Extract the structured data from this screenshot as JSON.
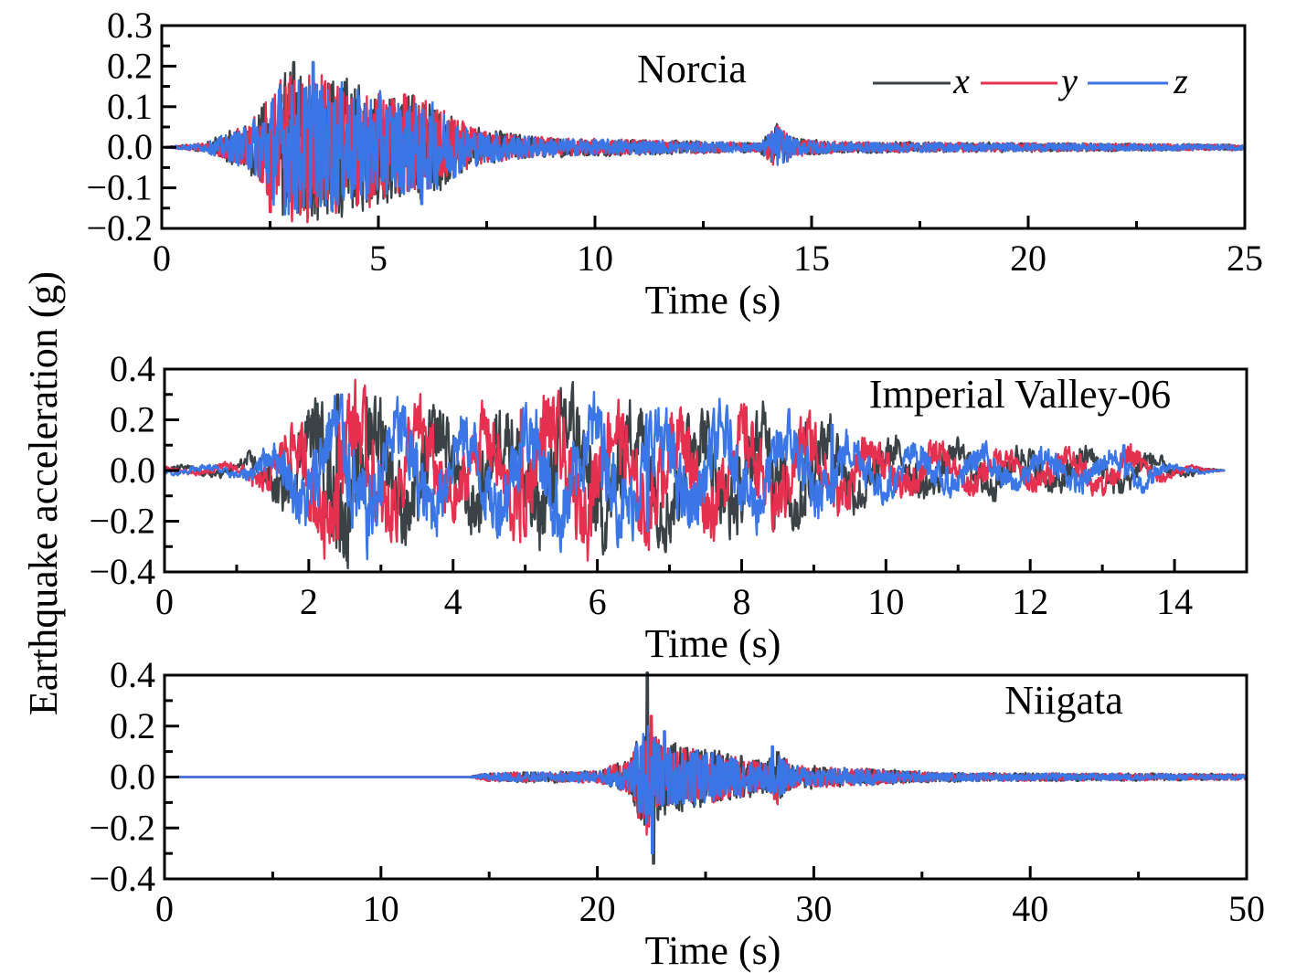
{
  "chart_data": {
    "type": "line",
    "ylabel": "Earthquake acceleration (g)",
    "legend": {
      "placement": "top-right",
      "entries": [
        "x",
        "y",
        "z"
      ]
    },
    "colors": {
      "x": "#3b4246",
      "y": "#e5304f",
      "z": "#3a76e6"
    },
    "panels": [
      {
        "title": "Norcia",
        "xlabel": "Time (s)",
        "xlim": [
          0,
          25
        ],
        "ylim": [
          -0.2,
          0.3
        ],
        "xticks": [
          "0",
          "5",
          "10",
          "15",
          "20",
          "25"
        ],
        "xtick_values": [
          0,
          5,
          10,
          15,
          20,
          25
        ],
        "yticks": [
          "0.3",
          "0.2",
          "0.1",
          "0.0",
          "−0.1",
          "−0.2"
        ],
        "ytick_values": [
          0.3,
          0.2,
          0.1,
          0.0,
          -0.1,
          -0.2
        ],
        "duration": 25,
        "envelope": [
          [
            0,
            0
          ],
          [
            1,
            0.01
          ],
          [
            2,
            0.05
          ],
          [
            2.8,
            0.15
          ],
          [
            3.5,
            0.16
          ],
          [
            5,
            0.12
          ],
          [
            6.2,
            0.1
          ],
          [
            7.2,
            0.04
          ],
          [
            9,
            0.02
          ],
          [
            13.8,
            0.01
          ],
          [
            14.2,
            0.05
          ],
          [
            14.6,
            0.02
          ],
          [
            15.5,
            0.012
          ],
          [
            25,
            0.006
          ]
        ],
        "peaks": {
          "x": [
            [
              3.05,
              0.21
            ],
            [
              3.3,
              -0.15
            ]
          ],
          "y": [
            [
              2.5,
              -0.16
            ],
            [
              5.6,
              0.13
            ]
          ],
          "z": [
            [
              3.5,
              0.21
            ],
            [
              6.0,
              -0.14
            ]
          ]
        },
        "series_duration": {
          "x": 25,
          "y": 25,
          "z": 25
        }
      },
      {
        "title": "Imperial Valley-06",
        "xlabel": "Time (s)",
        "xlim": [
          0,
          15
        ],
        "ylim": [
          -0.4,
          0.4
        ],
        "xticks": [
          "0",
          "2",
          "4",
          "6",
          "8",
          "10",
          "12",
          "14"
        ],
        "xtick_values": [
          0,
          2,
          4,
          6,
          8,
          10,
          12,
          14
        ],
        "yticks": [
          "0.4",
          "0.2",
          "0.0",
          "−0.2",
          "−0.4"
        ],
        "ytick_values": [
          0.4,
          0.2,
          0.0,
          -0.2,
          -0.4
        ],
        "duration": 14.7,
        "envelope": [
          [
            0,
            0.01
          ],
          [
            1,
            0.02
          ],
          [
            1.5,
            0.08
          ],
          [
            2.2,
            0.2
          ],
          [
            2.6,
            0.22
          ],
          [
            4,
            0.15
          ],
          [
            5.5,
            0.2
          ],
          [
            6.7,
            0.18
          ],
          [
            9,
            0.14
          ],
          [
            10,
            0.08
          ],
          [
            12,
            0.06
          ],
          [
            13.5,
            0.06
          ],
          [
            14,
            0.02
          ],
          [
            14.7,
            0
          ]
        ],
        "peaks": {
          "x": [
            [
              2.4,
              0.3
            ],
            [
              5.55,
              0.28
            ],
            [
              8.9,
              0.19
            ],
            [
              8.45,
              -0.23
            ]
          ],
          "y": [
            [
              2.4,
              -0.27
            ],
            [
              4.95,
              0.24
            ],
            [
              5.0,
              -0.26
            ],
            [
              5.85,
              -0.25
            ]
          ],
          "z": [
            [
              2.45,
              0.3
            ],
            [
              6.05,
              0.23
            ],
            [
              6.7,
              -0.24
            ],
            [
              9.25,
              0.18
            ],
            [
              13.3,
              0.1
            ]
          ]
        },
        "series_duration": {
          "x": 14.7,
          "y": 14.7,
          "z": 14.7
        }
      },
      {
        "title": "Niigata",
        "xlabel": "Time (s)",
        "xlim": [
          0,
          50
        ],
        "ylim": [
          -0.4,
          0.4
        ],
        "xticks": [
          "0",
          "10",
          "20",
          "30",
          "40",
          "50"
        ],
        "xtick_values": [
          0,
          10,
          20,
          30,
          40,
          50
        ],
        "yticks": [
          "0.4",
          "0.2",
          "0.0",
          "−0.2",
          "−0.4"
        ],
        "ytick_values": [
          0.4,
          0.2,
          0.0,
          -0.2,
          -0.4
        ],
        "duration": 50,
        "envelope": [
          [
            0,
            0
          ],
          [
            14,
            0
          ],
          [
            15,
            0.015
          ],
          [
            20,
            0.02
          ],
          [
            21.5,
            0.06
          ],
          [
            22.3,
            0.2
          ],
          [
            23,
            0.12
          ],
          [
            26,
            0.08
          ],
          [
            27.8,
            0.05
          ],
          [
            28.2,
            0.1
          ],
          [
            29,
            0.04
          ],
          [
            32,
            0.03
          ],
          [
            36,
            0.015
          ],
          [
            50,
            0.01
          ]
        ],
        "peaks": {
          "x": [
            [
              22.3,
              0.41
            ],
            [
              22.6,
              -0.34
            ]
          ],
          "y": [
            [
              22.5,
              0.24
            ],
            [
              21.9,
              -0.16
            ]
          ],
          "z": [
            [
              22.55,
              -0.3
            ],
            [
              23.1,
              0.18
            ],
            [
              28.1,
              0.12
            ]
          ]
        },
        "series_duration": {
          "x": 50,
          "y": 50,
          "z": 50
        }
      }
    ]
  }
}
